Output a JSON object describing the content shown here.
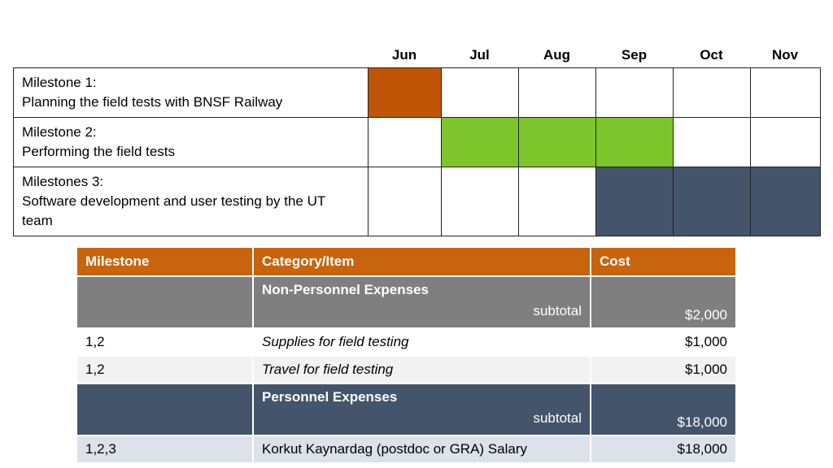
{
  "gantt": {
    "months": [
      "Jun",
      "Jul",
      "Aug",
      "Sep",
      "Oct",
      "Nov"
    ],
    "rows": [
      {
        "label_line1": "Milestone 1:",
        "label_line2": "Planning the field tests with BNSF Railway",
        "active_months": [
          "Jun"
        ],
        "color": "#c05508"
      },
      {
        "label_line1": "Milestone 2:",
        "label_line2": "Performing the field tests",
        "active_months": [
          "Jul",
          "Aug",
          "Sep"
        ],
        "color": "#7dc52b"
      },
      {
        "label_line1": "Milestones 3:",
        "label_line2": "Software development and user testing by the UT team",
        "active_months": [
          "Sep",
          "Oct",
          "Nov"
        ],
        "color": "#44546a"
      }
    ]
  },
  "budget": {
    "headers": {
      "milestone": "Milestone",
      "category": "Category/Item",
      "cost": "Cost"
    },
    "non_personnel": {
      "title": "Non-Personnel Expenses",
      "subtotal_label": "subtotal",
      "subtotal": "$2,000"
    },
    "np_items": [
      {
        "milestone": "1,2",
        "item": "Supplies for field testing",
        "cost": "$1,000"
      },
      {
        "milestone": "1,2",
        "item": "Travel for field testing",
        "cost": "$1,000"
      }
    ],
    "personnel": {
      "title": "Personnel Expenses",
      "subtotal_label": "subtotal",
      "subtotal": "$18,000"
    },
    "p_items": [
      {
        "milestone": "1,2,3",
        "item": "Korkut Kaynardag (postdoc or GRA) Salary",
        "cost": "$18,000"
      }
    ],
    "colors": {
      "header": "#c8640e",
      "non_personnel": "#7f7f7f",
      "personnel": "#44546a"
    }
  }
}
